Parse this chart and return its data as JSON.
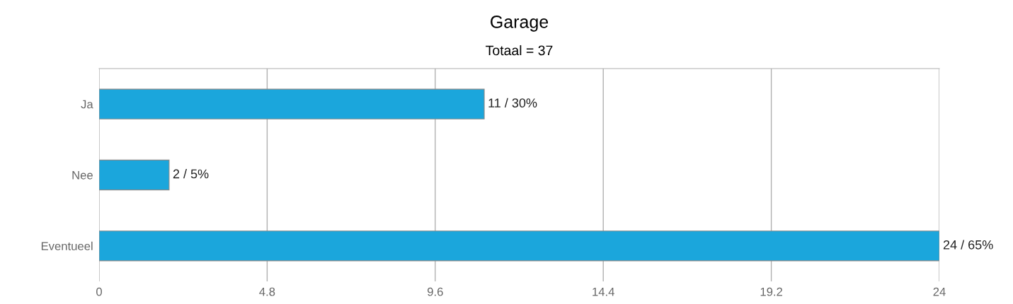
{
  "chart_data": {
    "type": "bar",
    "orientation": "horizontal",
    "title": "Garage",
    "subtitle": "Totaal = 37",
    "categories": [
      "Ja",
      "Nee",
      "Eventueel"
    ],
    "values": [
      11,
      2,
      24
    ],
    "value_labels": [
      "11 / 30%",
      "2 / 5%",
      "24 / 65%"
    ],
    "color": "#1ba6dc",
    "xlim": [
      0,
      24
    ],
    "xticks": [
      0,
      4.8,
      9.6,
      14.4,
      19.2,
      24
    ],
    "grid": "x"
  }
}
